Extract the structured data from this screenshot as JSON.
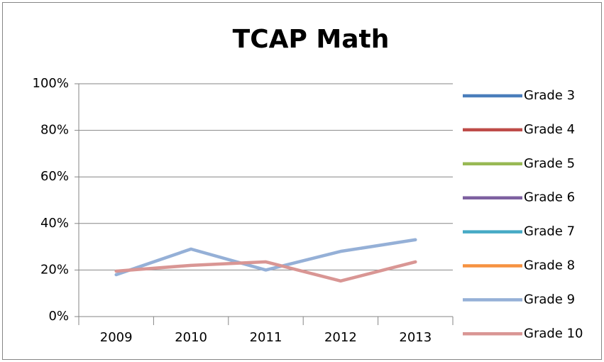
{
  "chart_data": {
    "type": "line",
    "title": "TCAP Math",
    "categories": [
      "2009",
      "2010",
      "2011",
      "2012",
      "2013"
    ],
    "series": [
      {
        "name": "Grade 3",
        "color": "#4a7ebb",
        "values": [
          null,
          null,
          null,
          null,
          null
        ]
      },
      {
        "name": "Grade 4",
        "color": "#be4b48",
        "values": [
          null,
          null,
          null,
          null,
          null
        ]
      },
      {
        "name": "Grade 5",
        "color": "#98b954",
        "values": [
          null,
          null,
          null,
          null,
          null
        ]
      },
      {
        "name": "Grade 6",
        "color": "#7d60a0",
        "values": [
          null,
          null,
          null,
          null,
          null
        ]
      },
      {
        "name": "Grade 7",
        "color": "#46aac5",
        "values": [
          null,
          null,
          null,
          null,
          null
        ]
      },
      {
        "name": "Grade 8",
        "color": "#f69240",
        "values": [
          null,
          null,
          null,
          null,
          null
        ]
      },
      {
        "name": "Grade 9",
        "color": "#95b0d7",
        "values": [
          18,
          29,
          20,
          28,
          33
        ]
      },
      {
        "name": "Grade 10",
        "color": "#d99694",
        "values": [
          19.5,
          22,
          23.5,
          15.3,
          23.5
        ]
      }
    ],
    "ylim": [
      0,
      100
    ],
    "yticks": [
      {
        "value": 0,
        "label": "0%"
      },
      {
        "value": 20,
        "label": "20%"
      },
      {
        "value": 40,
        "label": "40%"
      },
      {
        "value": 60,
        "label": "60%"
      },
      {
        "value": 80,
        "label": "80%"
      },
      {
        "value": 100,
        "label": "100%"
      }
    ],
    "grid": true,
    "legend": "right"
  }
}
